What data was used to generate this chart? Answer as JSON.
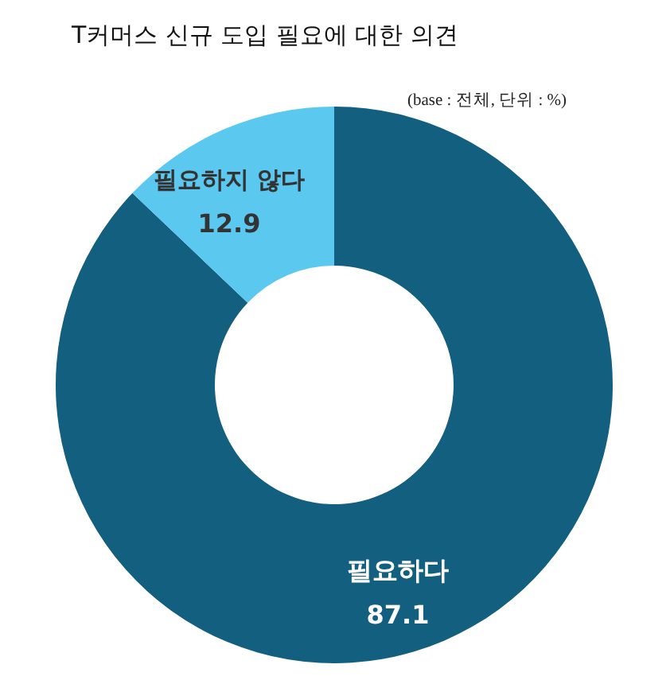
{
  "chart_data": {
    "type": "donut",
    "title": "T커머스 신규 도입 필요에 대한 의견",
    "annotations": [
      "(base : 전체, 단위 : %)"
    ],
    "categories": [
      "필요하다",
      "필요하지 않다"
    ],
    "values": [
      87.1,
      12.9
    ],
    "colors": [
      "#135f80",
      "#5bc8f0"
    ],
    "data_labels": true
  }
}
